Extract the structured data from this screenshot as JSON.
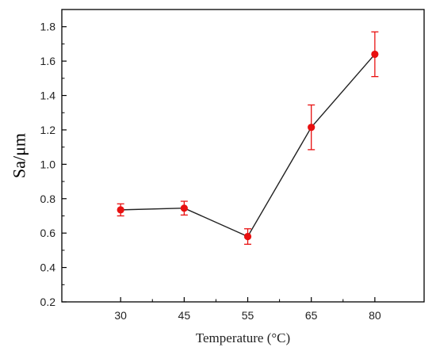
{
  "chart_data": {
    "type": "line",
    "xlabel": "Temperature (°C)",
    "ylabel": "Sa/μm",
    "categories": [
      "30",
      "45",
      "55",
      "65",
      "80"
    ],
    "ylim": [
      0.2,
      1.9
    ],
    "yticks": [
      0.2,
      0.4,
      0.6,
      0.8,
      1.0,
      1.2,
      1.4,
      1.6,
      1.8
    ],
    "ytick_labels": [
      "0.2",
      "0.4",
      "0.6",
      "0.8",
      "1.0",
      "1.2",
      "1.4",
      "1.6",
      "1.8"
    ],
    "grid": false,
    "series": [
      {
        "values": [
          0.735,
          0.745,
          0.58,
          1.215,
          1.64
        ],
        "error": [
          0.035,
          0.04,
          0.045,
          0.13,
          0.13
        ]
      }
    ],
    "colors": {
      "marker": "#e81010",
      "line": "#222222",
      "axis": "#000000"
    }
  }
}
